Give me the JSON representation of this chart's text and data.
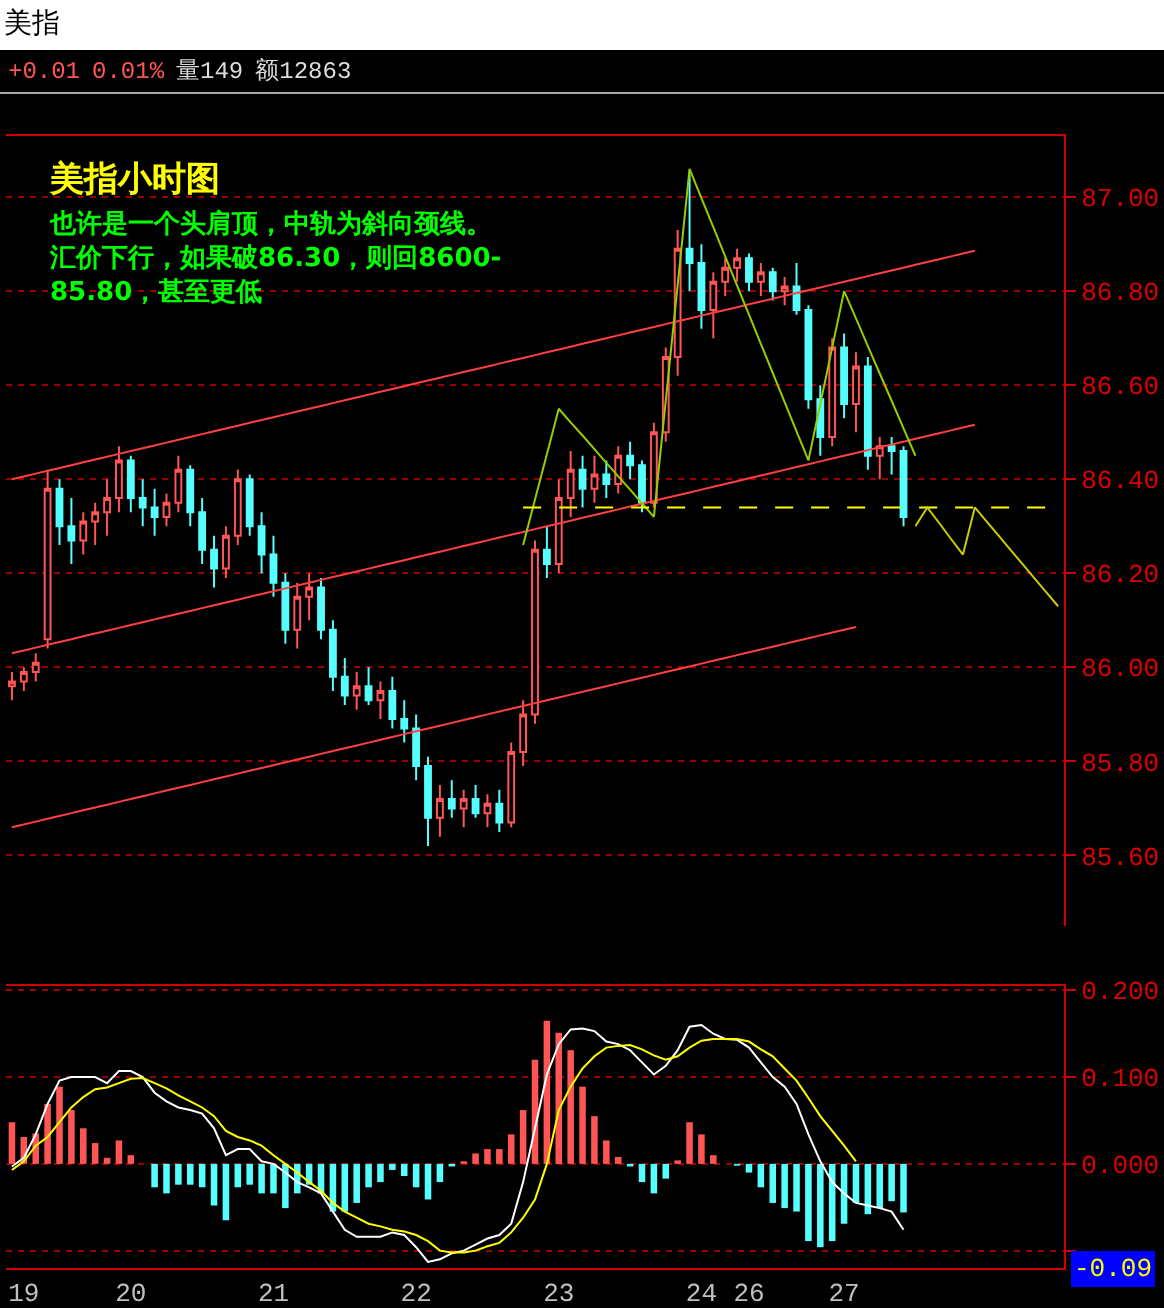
{
  "chart_data": [
    {
      "type": "candlestick",
      "title": "美指小时图",
      "subtitle": "也许是一个头肩顶，中轨为斜向颈线。汇价下行，如果破86.30，则回8600-85.80，甚至更低",
      "annotations": [
        "美指",
        "+0.01",
        "0.01%",
        "量149",
        "额12863"
      ],
      "categories": [
        null,
        "19",
        null,
        null,
        null,
        null,
        null,
        null,
        null,
        null,
        "20",
        null,
        null,
        null,
        null,
        null,
        null,
        null,
        null,
        null,
        null,
        null,
        "21",
        null,
        null,
        null,
        null,
        null,
        null,
        null,
        null,
        null,
        null,
        null,
        "22",
        null,
        null,
        null,
        null,
        null,
        null,
        null,
        null,
        null,
        null,
        null,
        "23",
        null,
        null,
        null,
        null,
        null,
        null,
        null,
        null,
        null,
        null,
        null,
        "24",
        null,
        null,
        null,
        "26",
        null,
        null,
        null,
        null,
        null,
        null,
        null,
        "27",
        null,
        null,
        null,
        null,
        null,
        null,
        null,
        null,
        null,
        null,
        null,
        null,
        null,
        null,
        null,
        null,
        null,
        null
      ],
      "ohlc": [
        [
          85.96,
          85.99,
          85.93,
          85.97
        ],
        [
          85.97,
          86.0,
          85.95,
          85.99
        ],
        [
          85.99,
          86.03,
          85.97,
          86.01
        ],
        [
          86.06,
          86.42,
          86.04,
          86.38
        ],
        [
          86.38,
          86.4,
          86.26,
          86.3
        ],
        [
          86.3,
          86.36,
          86.22,
          86.27
        ],
        [
          86.27,
          86.33,
          86.24,
          86.31
        ],
        [
          86.31,
          86.35,
          86.26,
          86.33
        ],
        [
          86.33,
          86.4,
          86.28,
          86.36
        ],
        [
          86.36,
          86.47,
          86.33,
          86.44
        ],
        [
          86.44,
          86.45,
          86.33,
          86.36
        ],
        [
          86.36,
          86.4,
          86.3,
          86.34
        ],
        [
          86.34,
          86.38,
          86.28,
          86.32
        ],
        [
          86.32,
          86.37,
          86.3,
          86.35
        ],
        [
          86.35,
          86.45,
          86.33,
          86.42
        ],
        [
          86.42,
          86.43,
          86.3,
          86.33
        ],
        [
          86.33,
          86.36,
          86.22,
          86.25
        ],
        [
          86.25,
          86.28,
          86.17,
          86.21
        ],
        [
          86.21,
          86.3,
          86.19,
          86.28
        ],
        [
          86.28,
          86.42,
          86.26,
          86.4
        ],
        [
          86.4,
          86.41,
          86.28,
          86.3
        ],
        [
          86.3,
          86.33,
          86.2,
          86.24
        ],
        [
          86.24,
          86.28,
          86.15,
          86.18
        ],
        [
          86.18,
          86.2,
          86.05,
          86.08
        ],
        [
          86.08,
          86.18,
          86.04,
          86.15
        ],
        [
          86.15,
          86.2,
          86.1,
          86.17
        ],
        [
          86.17,
          86.19,
          86.06,
          86.08
        ],
        [
          86.08,
          86.1,
          85.95,
          85.98
        ],
        [
          85.98,
          86.02,
          85.92,
          85.94
        ],
        [
          85.94,
          85.99,
          85.91,
          85.96
        ],
        [
          85.96,
          86.0,
          85.92,
          85.93
        ],
        [
          85.93,
          85.97,
          85.89,
          85.95
        ],
        [
          85.95,
          85.98,
          85.87,
          85.89
        ],
        [
          85.89,
          85.93,
          85.84,
          85.87
        ],
        [
          85.87,
          85.9,
          85.76,
          85.79
        ],
        [
          85.79,
          85.81,
          85.62,
          85.68
        ],
        [
          85.68,
          85.75,
          85.64,
          85.72
        ],
        [
          85.72,
          85.76,
          85.68,
          85.7
        ],
        [
          85.7,
          85.74,
          85.66,
          85.72
        ],
        [
          85.72,
          85.75,
          85.68,
          85.69
        ],
        [
          85.69,
          85.73,
          85.66,
          85.71
        ],
        [
          85.71,
          85.74,
          85.65,
          85.67
        ],
        [
          85.67,
          85.84,
          85.66,
          85.82
        ],
        [
          85.82,
          85.93,
          85.79,
          85.9
        ],
        [
          85.9,
          86.27,
          85.88,
          86.25
        ],
        [
          86.25,
          86.3,
          86.19,
          86.22
        ],
        [
          86.22,
          86.4,
          86.2,
          86.36
        ],
        [
          86.36,
          86.46,
          86.32,
          86.42
        ],
        [
          86.42,
          86.45,
          86.34,
          86.38
        ],
        [
          86.38,
          86.45,
          86.35,
          86.41
        ],
        [
          86.41,
          86.44,
          86.36,
          86.39
        ],
        [
          86.39,
          86.47,
          86.37,
          86.45
        ],
        [
          86.45,
          86.48,
          86.4,
          86.43
        ],
        [
          86.43,
          86.44,
          86.33,
          86.35
        ],
        [
          86.35,
          86.52,
          86.34,
          86.5
        ],
        [
          86.5,
          86.68,
          86.48,
          86.66
        ],
        [
          86.66,
          86.93,
          86.62,
          86.89
        ],
        [
          86.89,
          87.05,
          86.8,
          86.86
        ],
        [
          86.86,
          86.9,
          86.72,
          86.76
        ],
        [
          86.76,
          86.84,
          86.7,
          86.82
        ],
        [
          86.82,
          86.87,
          86.79,
          86.85
        ],
        [
          86.85,
          86.89,
          86.82,
          86.87
        ],
        [
          86.87,
          86.88,
          86.8,
          86.82
        ],
        [
          86.82,
          86.86,
          86.79,
          86.84
        ],
        [
          86.84,
          86.85,
          86.78,
          86.8
        ],
        [
          86.8,
          86.83,
          86.77,
          86.81
        ],
        [
          86.81,
          86.86,
          86.75,
          86.76
        ],
        [
          86.76,
          86.77,
          86.55,
          86.57
        ],
        [
          86.57,
          86.6,
          86.45,
          86.49
        ],
        [
          86.49,
          86.7,
          86.47,
          86.68
        ],
        [
          86.68,
          86.71,
          86.53,
          86.56
        ],
        [
          86.56,
          86.67,
          86.5,
          86.64
        ],
        [
          86.64,
          86.66,
          86.42,
          86.45
        ],
        [
          86.45,
          86.49,
          86.4,
          86.47
        ],
        [
          86.47,
          86.49,
          86.41,
          86.46
        ],
        [
          86.46,
          86.47,
          86.3,
          86.32
        ],
        null,
        null,
        null,
        null,
        null,
        null,
        null,
        null,
        null,
        null,
        null,
        null,
        null
      ],
      "series": [
        {
          "type": "line",
          "color": "#ff4040",
          "values": [
            86.4,
            86.406,
            86.412,
            86.418,
            86.424,
            86.43,
            86.436,
            86.442,
            86.448,
            86.454,
            86.46,
            86.466,
            86.472,
            86.478,
            86.484,
            86.49,
            86.496,
            86.502,
            86.508,
            86.514,
            86.52,
            86.526,
            86.532,
            86.538,
            86.544,
            86.55,
            86.556,
            86.562,
            86.568,
            86.574,
            86.58,
            86.586,
            86.592,
            86.598,
            86.604,
            86.61,
            86.616,
            86.622,
            86.628,
            86.634,
            86.64,
            86.646,
            86.652,
            86.658,
            86.664,
            86.67,
            86.676,
            86.682,
            86.688,
            86.694,
            86.7,
            86.706,
            86.712,
            86.718,
            86.724,
            86.73,
            86.736,
            86.742,
            86.748,
            86.754,
            86.76,
            86.766,
            86.772,
            86.778,
            86.784,
            86.79,
            86.796,
            86.802,
            86.808,
            86.814,
            86.82,
            86.826,
            86.832,
            86.838,
            86.844,
            86.85,
            86.856,
            86.862,
            86.868,
            86.874,
            86.88,
            86.886,
            null,
            null,
            null,
            null,
            null,
            null,
            null
          ]
        },
        {
          "type": "line",
          "color": "#ff4040",
          "values": [
            86.03,
            86.036,
            86.042,
            86.048,
            86.054,
            86.06,
            86.066,
            86.072,
            86.078,
            86.084,
            86.09,
            86.096,
            86.102,
            86.108,
            86.114,
            86.12,
            86.126,
            86.132,
            86.138,
            86.144,
            86.15,
            86.156,
            86.162,
            86.168,
            86.174,
            86.18,
            86.186,
            86.192,
            86.198,
            86.204,
            86.21,
            86.216,
            86.222,
            86.228,
            86.234,
            86.24,
            86.246,
            86.252,
            86.258,
            86.264,
            86.27,
            86.276,
            86.282,
            86.288,
            86.294,
            86.3,
            86.306,
            86.312,
            86.318,
            86.324,
            86.33,
            86.336,
            86.342,
            86.348,
            86.354,
            86.36,
            86.366,
            86.372,
            86.378,
            86.384,
            86.39,
            86.396,
            86.402,
            86.408,
            86.414,
            86.42,
            86.426,
            86.432,
            86.438,
            86.444,
            86.45,
            86.456,
            86.462,
            86.468,
            86.474,
            86.48,
            86.486,
            86.492,
            86.498,
            86.504,
            86.51,
            86.516,
            null,
            null,
            null,
            null,
            null,
            null,
            null
          ]
        },
        {
          "type": "line",
          "color": "#ff4040",
          "values": [
            85.66,
            85.666,
            85.672,
            85.678,
            85.684,
            85.69,
            85.696,
            85.702,
            85.708,
            85.714,
            85.72,
            85.726,
            85.732,
            85.738,
            85.744,
            85.75,
            85.756,
            85.762,
            85.768,
            85.774,
            85.78,
            85.786,
            85.792,
            85.798,
            85.804,
            85.81,
            85.816,
            85.822,
            85.828,
            85.834,
            85.84,
            85.846,
            85.852,
            85.858,
            85.864,
            85.87,
            85.876,
            85.882,
            85.888,
            85.894,
            85.9,
            85.906,
            85.912,
            85.918,
            85.924,
            85.93,
            85.936,
            85.942,
            85.948,
            85.954,
            85.96,
            85.966,
            85.972,
            85.978,
            85.984,
            85.99,
            85.996,
            86.002,
            86.008,
            86.014,
            86.02,
            86.026,
            86.032,
            86.038,
            86.044,
            86.05,
            86.056,
            86.062,
            86.068,
            86.074,
            86.08,
            86.086,
            null,
            null,
            null,
            null,
            null,
            null,
            null,
            null,
            null,
            null,
            null,
            null,
            null,
            null,
            null,
            null,
            null
          ]
        },
        {
          "type": "line",
          "color": "#99cc00",
          "values": [
            null,
            null,
            null,
            null,
            null,
            null,
            null,
            null,
            null,
            null,
            null,
            null,
            null,
            null,
            null,
            null,
            null,
            null,
            null,
            null,
            null,
            null,
            null,
            null,
            null,
            null,
            null,
            null,
            null,
            null,
            null,
            null,
            null,
            null,
            null,
            null,
            null,
            null,
            null,
            null,
            null,
            null,
            null,
            86.26,
            86.357,
            86.453,
            86.55,
            86.521,
            86.493,
            86.464,
            86.435,
            86.406,
            86.378,
            86.349,
            86.32,
            86.567,
            86.813,
            87.06,
            86.998,
            86.936,
            86.874,
            86.812,
            86.75,
            86.688,
            86.626,
            86.564,
            86.502,
            86.44,
            86.56,
            86.68,
            86.8,
            86.742,
            86.683,
            86.625,
            86.567,
            86.508,
            86.45,
            null,
            null,
            null,
            null,
            null,
            null,
            null,
            null,
            null,
            null,
            null,
            null
          ]
        },
        {
          "type": "line",
          "color": "#ffff00",
          "line_style": "dashed",
          "values": [
            null,
            null,
            null,
            null,
            null,
            null,
            null,
            null,
            null,
            null,
            null,
            null,
            null,
            null,
            null,
            null,
            null,
            null,
            null,
            null,
            null,
            null,
            null,
            null,
            null,
            null,
            null,
            null,
            null,
            null,
            null,
            null,
            null,
            null,
            null,
            null,
            null,
            null,
            null,
            null,
            null,
            null,
            null,
            86.34,
            86.34,
            86.34,
            86.34,
            86.34,
            86.34,
            86.34,
            86.34,
            86.34,
            86.34,
            86.34,
            86.34,
            86.34,
            86.34,
            86.34,
            86.34,
            86.34,
            86.34,
            86.34,
            86.34,
            86.34,
            86.34,
            86.34,
            86.34,
            86.34,
            86.34,
            86.34,
            86.34,
            86.34,
            86.34,
            86.34,
            86.34,
            86.34,
            86.34,
            86.34,
            86.34,
            86.34,
            86.34,
            86.34,
            86.34,
            86.34,
            86.34,
            86.34,
            86.34,
            86.34,
            null
          ]
        },
        {
          "type": "line",
          "color": "#cccc00",
          "values": [
            null,
            null,
            null,
            null,
            null,
            null,
            null,
            null,
            null,
            null,
            null,
            null,
            null,
            null,
            null,
            null,
            null,
            null,
            null,
            null,
            null,
            null,
            null,
            null,
            null,
            null,
            null,
            null,
            null,
            null,
            null,
            null,
            null,
            null,
            null,
            null,
            null,
            null,
            null,
            null,
            null,
            null,
            null,
            null,
            null,
            null,
            null,
            null,
            null,
            null,
            null,
            null,
            null,
            null,
            null,
            null,
            null,
            null,
            null,
            null,
            null,
            null,
            null,
            null,
            null,
            null,
            null,
            null,
            null,
            null,
            null,
            null,
            null,
            null,
            null,
            null,
            86.3,
            86.34,
            86.307,
            86.273,
            86.24,
            86.34,
            86.31,
            86.28,
            86.25,
            86.22,
            86.19,
            86.16,
            86.13
          ]
        }
      ],
      "ylim": [
        85.45,
        87.13
      ],
      "yticks": [
        {
          "value": 85.6,
          "label": "85.60"
        },
        {
          "value": 85.8,
          "label": "85.80"
        },
        {
          "value": 86,
          "label": "86.00"
        },
        {
          "value": 86.2,
          "label": "86.20"
        },
        {
          "value": 86.4,
          "label": "86.40"
        },
        {
          "value": 86.6,
          "label": "86.60"
        },
        {
          "value": 86.8,
          "label": "86.80"
        },
        {
          "value": 87,
          "label": "87.00"
        }
      ],
      "grid": "y",
      "tick_labels": "y"
    },
    {
      "type": "bar",
      "annotations": [
        "-0.09"
      ],
      "categories": [
        null,
        "19",
        null,
        null,
        null,
        null,
        null,
        null,
        null,
        null,
        "20",
        null,
        null,
        null,
        null,
        null,
        null,
        null,
        null,
        null,
        null,
        null,
        "21",
        null,
        null,
        null,
        null,
        null,
        null,
        null,
        null,
        null,
        null,
        null,
        "22",
        null,
        null,
        null,
        null,
        null,
        null,
        null,
        null,
        null,
        null,
        null,
        "23",
        null,
        null,
        null,
        null,
        null,
        null,
        null,
        null,
        null,
        null,
        null,
        "24",
        null,
        null,
        null,
        "26",
        null,
        null,
        null,
        null,
        null,
        null,
        null,
        "27",
        null,
        null,
        null,
        null,
        null,
        null,
        null,
        null,
        null,
        null,
        null,
        null,
        null,
        null,
        null,
        null,
        null,
        null
      ],
      "series": [
        {
          "type": "bar",
          "values": [
            0.048,
            0.031,
            0.035,
            0.069,
            0.089,
            0.062,
            0.041,
            0.024,
            0.007,
            0.027,
            0.01,
            0,
            -0.027,
            -0.034,
            -0.024,
            -0.024,
            -0.027,
            -0.048,
            -0.065,
            -0.027,
            -0.024,
            -0.034,
            -0.034,
            -0.051,
            -0.034,
            -0.024,
            -0.034,
            -0.055,
            -0.055,
            -0.045,
            -0.027,
            -0.021,
            -0.007,
            -0.014,
            -0.027,
            -0.041,
            -0.021,
            -0.003,
            0.003,
            0.012,
            0.017,
            0.017,
            0.034,
            0.062,
            0.12,
            0.165,
            0.151,
            0.131,
            0.089,
            0.055,
            0.027,
            0.008,
            -0.003,
            -0.021,
            -0.034,
            -0.017,
            0.004,
            0.048,
            0.034,
            0.01,
            0,
            -0.002,
            -0.01,
            -0.027,
            -0.045,
            -0.051,
            -0.055,
            -0.089,
            -0.096,
            -0.089,
            -0.069,
            -0.045,
            -0.058,
            -0.051,
            -0.043,
            -0.056,
            null,
            null,
            null,
            null,
            null,
            null,
            null,
            null,
            null,
            null,
            null,
            null,
            null
          ],
          "colors": [
            "#ff5555",
            "#ff5555",
            "#ff5555",
            "#ff5555",
            "#ff5555",
            "#ff5555",
            "#ff5555",
            "#ff5555",
            "#ff5555",
            "#ff5555",
            "#ff5555",
            "#ff5555",
            "#55ffff",
            "#55ffff",
            "#55ffff",
            "#55ffff",
            "#55ffff",
            "#55ffff",
            "#55ffff",
            "#55ffff",
            "#55ffff",
            "#55ffff",
            "#55ffff",
            "#55ffff",
            "#55ffff",
            "#55ffff",
            "#55ffff",
            "#55ffff",
            "#55ffff",
            "#55ffff",
            "#55ffff",
            "#55ffff",
            "#55ffff",
            "#55ffff",
            "#55ffff",
            "#55ffff",
            "#55ffff",
            "#55ffff",
            "#ff5555",
            "#ff5555",
            "#ff5555",
            "#ff5555",
            "#ff5555",
            "#ff5555",
            "#ff5555",
            "#ff5555",
            "#ff5555",
            "#ff5555",
            "#ff5555",
            "#ff5555",
            "#ff5555",
            "#ff5555",
            "#55ffff",
            "#55ffff",
            "#55ffff",
            "#55ffff",
            "#ff5555",
            "#ff5555",
            "#ff5555",
            "#ff5555",
            "#ff5555",
            "#55ffff",
            "#55ffff",
            "#55ffff",
            "#55ffff",
            "#55ffff",
            "#55ffff",
            "#55ffff",
            "#55ffff",
            "#55ffff",
            "#55ffff",
            "#55ffff",
            "#55ffff",
            "#55ffff",
            "#55ffff",
            "#55ffff",
            null,
            null,
            null,
            null,
            null,
            null,
            null,
            null,
            null,
            null,
            null,
            null,
            null
          ]
        },
        {
          "type": "line",
          "color": "#ffffff",
          "values": [
            -0.003,
            0.007,
            0.034,
            0.069,
            0.096,
            0.1,
            0.1,
            0.1,
            0.093,
            0.107,
            0.107,
            0.1,
            0.082,
            0.072,
            0.065,
            0.062,
            0.058,
            0.041,
            0.01,
            0.017,
            0.017,
            0.003,
            0,
            -0.01,
            -0.021,
            -0.027,
            -0.034,
            -0.055,
            -0.076,
            -0.084,
            -0.084,
            -0.084,
            -0.079,
            -0.082,
            -0.096,
            -0.113,
            -0.11,
            -0.103,
            -0.1,
            -0.093,
            -0.086,
            -0.082,
            -0.069,
            -0.021,
            0.041,
            0.103,
            0.138,
            0.155,
            0.156,
            0.153,
            0.141,
            0.138,
            0.131,
            0.117,
            0.103,
            0.113,
            0.131,
            0.158,
            0.16,
            0.15,
            0.144,
            0.143,
            0.134,
            0.117,
            0.1,
            0.089,
            0.069,
            0.034,
            0.003,
            -0.021,
            -0.034,
            -0.045,
            -0.048,
            -0.051,
            -0.055,
            -0.076,
            null,
            null,
            null,
            null,
            null,
            null,
            null,
            null,
            null,
            null,
            null,
            null,
            null
          ]
        },
        {
          "type": "line",
          "color": "#ffff00",
          "values": [
            -0.007,
            0.003,
            0.021,
            0.031,
            0.048,
            0.065,
            0.077,
            0.086,
            0.088,
            0.093,
            0.098,
            0.099,
            0.093,
            0.087,
            0.079,
            0.072,
            0.065,
            0.055,
            0.038,
            0.031,
            0.027,
            0.021,
            0.01,
            0,
            -0.01,
            -0.021,
            -0.031,
            -0.045,
            -0.055,
            -0.062,
            -0.069,
            -0.072,
            -0.076,
            -0.078,
            -0.082,
            -0.089,
            -0.1,
            -0.102,
            -0.102,
            -0.1,
            -0.095,
            -0.091,
            -0.079,
            -0.062,
            -0.041,
            0,
            0.062,
            0.089,
            0.11,
            0.124,
            0.134,
            0.136,
            0.137,
            0.132,
            0.125,
            0.12,
            0.124,
            0.134,
            0.142,
            0.144,
            0.144,
            0.144,
            0.141,
            0.132,
            0.124,
            0.11,
            0.096,
            0.076,
            0.055,
            0.038,
            0.021,
            0.003,
            null,
            null,
            null,
            null,
            null,
            null,
            null,
            null,
            null,
            null,
            null,
            null,
            null,
            null,
            null,
            null,
            null
          ]
        }
      ],
      "ylim": [
        -0.12,
        0.205
      ],
      "yticks": [
        {
          "value": -0.1,
          "label": null
        },
        {
          "value": 0,
          "label": "0.000"
        },
        {
          "value": 0.1,
          "label": "0.100"
        },
        {
          "value": 0.2,
          "label": "0.200"
        }
      ],
      "grid": "y"
    }
  ]
}
